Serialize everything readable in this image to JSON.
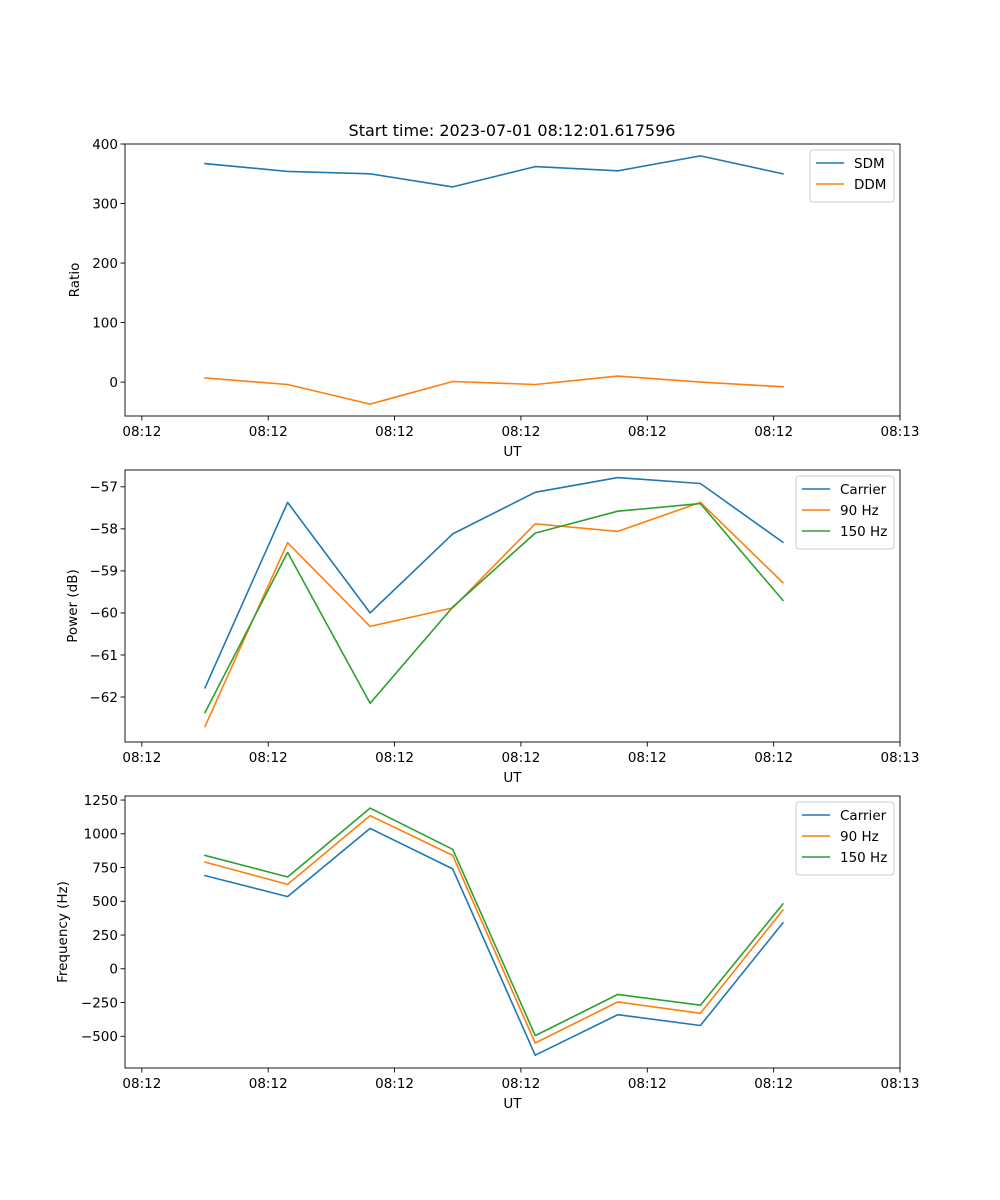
{
  "title": "Start time: 2023-07-01 08:12:01.617596",
  "chart_data": [
    {
      "type": "line",
      "xlabel": "UT",
      "ylabel": "Ratio",
      "ylim": [
        -57,
        400
      ],
      "yticks": [
        0,
        100,
        200,
        300,
        400
      ],
      "xlim": [
        -0.2,
        9.0
      ],
      "xticks": [
        0,
        1.5,
        3,
        4.5,
        6,
        7.5,
        9
      ],
      "xtick_labels": [
        "08:12",
        "08:12",
        "08:12",
        "08:12",
        "08:12",
        "08:12",
        "08:13"
      ],
      "x": [
        0.75,
        1.73,
        2.71,
        3.69,
        4.67,
        5.65,
        6.63,
        7.61
      ],
      "legend": "upper-right",
      "series": [
        {
          "name": "SDM",
          "color": "#1f77b4",
          "values": [
            367,
            354,
            350,
            328,
            362,
            355,
            380,
            350
          ]
        },
        {
          "name": "DDM",
          "color": "#ff7f0e",
          "values": [
            7,
            -4,
            -37,
            1,
            -4,
            10,
            0,
            -8
          ]
        }
      ]
    },
    {
      "type": "line",
      "xlabel": "UT",
      "ylabel": "Power (dB)",
      "ylim": [
        -63.07,
        -56.6
      ],
      "yticks": [
        -62,
        -61,
        -60,
        -59,
        -58,
        -57
      ],
      "xlim": [
        -0.2,
        9.0
      ],
      "xticks": [
        0,
        1.5,
        3,
        4.5,
        6,
        7.5,
        9
      ],
      "xtick_labels": [
        "08:12",
        "08:12",
        "08:12",
        "08:12",
        "08:12",
        "08:12",
        "08:13"
      ],
      "x": [
        0.75,
        1.73,
        2.71,
        3.69,
        4.67,
        5.65,
        6.63,
        7.61
      ],
      "legend": "upper-right",
      "series": [
        {
          "name": "Carrier",
          "color": "#1f77b4",
          "values": [
            -61.78,
            -57.37,
            -60.0,
            -58.12,
            -57.13,
            -56.78,
            -56.92,
            -58.32
          ]
        },
        {
          "name": "90 Hz",
          "color": "#ff7f0e",
          "values": [
            -62.7,
            -58.33,
            -60.32,
            -59.88,
            -57.88,
            -58.06,
            -57.37,
            -59.28
          ]
        },
        {
          "name": "150 Hz",
          "color": "#2ca02c",
          "values": [
            -62.37,
            -58.56,
            -62.15,
            -59.86,
            -58.1,
            -57.58,
            -57.4,
            -59.7
          ]
        }
      ]
    },
    {
      "type": "line",
      "xlabel": "UT",
      "ylabel": "Frequency (Hz)",
      "ylim": [
        -735,
        1280
      ],
      "yticks": [
        -500,
        -250,
        0,
        250,
        500,
        750,
        1000,
        1250
      ],
      "xlim": [
        -0.2,
        9.0
      ],
      "xticks": [
        0,
        1.5,
        3,
        4.5,
        6,
        7.5,
        9
      ],
      "xtick_labels": [
        "08:12",
        "08:12",
        "08:12",
        "08:12",
        "08:12",
        "08:12",
        "08:13"
      ],
      "x": [
        0.75,
        1.73,
        2.71,
        3.69,
        4.67,
        5.65,
        6.63,
        7.61
      ],
      "legend": "upper-right",
      "series": [
        {
          "name": "Carrier",
          "color": "#1f77b4",
          "values": [
            690,
            535,
            1040,
            740,
            -640,
            -340,
            -420,
            340
          ]
        },
        {
          "name": "90 Hz",
          "color": "#ff7f0e",
          "values": [
            790,
            625,
            1135,
            840,
            -550,
            -245,
            -330,
            435
          ]
        },
        {
          "name": "150 Hz",
          "color": "#2ca02c",
          "values": [
            840,
            680,
            1190,
            885,
            -495,
            -190,
            -270,
            480
          ]
        }
      ]
    }
  ]
}
